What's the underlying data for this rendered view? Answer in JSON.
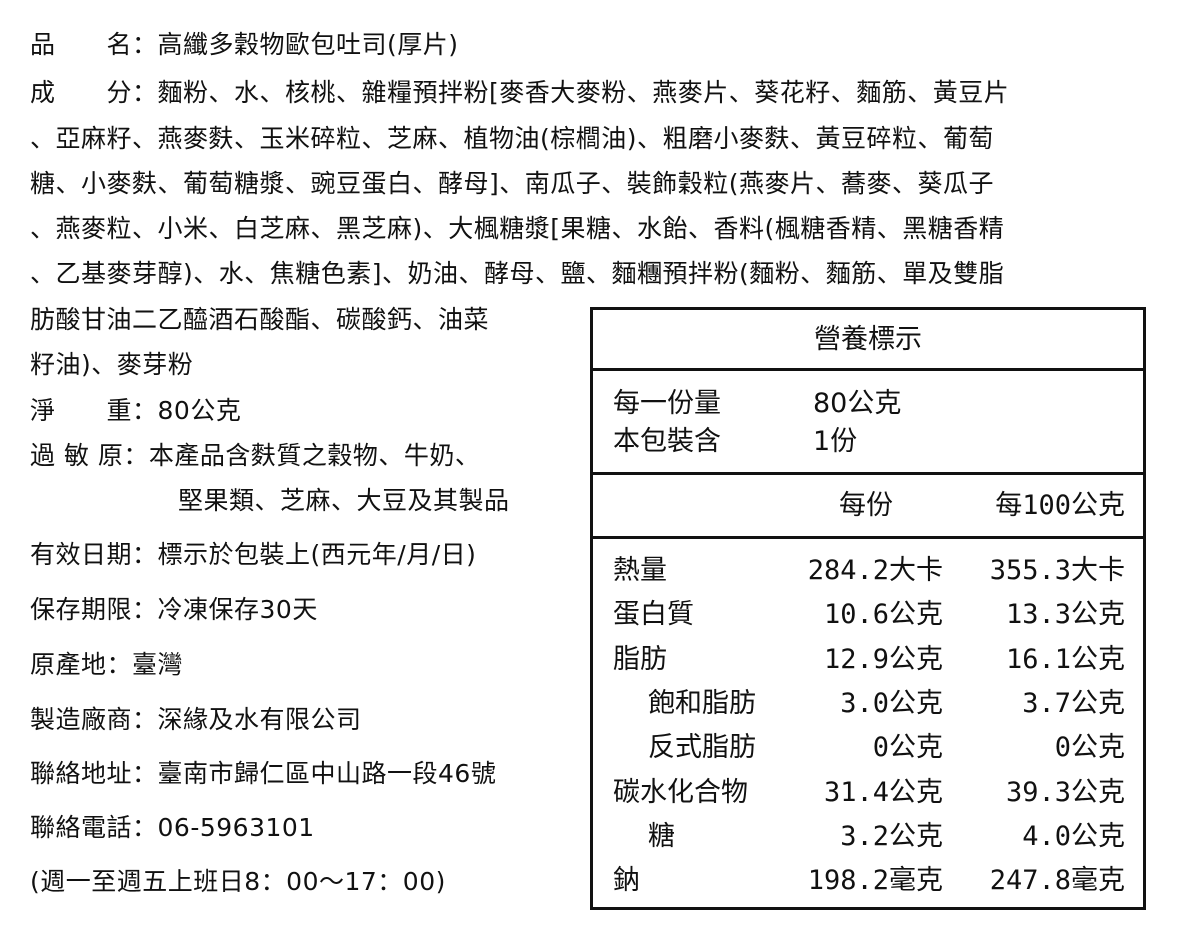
{
  "product_name": {
    "label": "品　　名：",
    "value": "高纖多穀物歐包吐司(厚片)"
  },
  "ingredients": {
    "label": "成　　分：",
    "lines": [
      "麵粉、水、核桃、雜糧預拌粉[麥香大麥粉、燕麥片、葵花籽、麵筋、黃豆片",
      "、亞麻籽、燕麥麩、玉米碎粒、芝麻、植物油(棕櫚油)、粗磨小麥麩、黃豆碎粒、葡萄",
      "糖、小麥麩、葡萄糖漿、豌豆蛋白、酵母]、南瓜子、裝飾穀粒(燕麥片、蕎麥、葵瓜子",
      "、燕麥粒、小米、白芝麻、黑芝麻)、大楓糖漿[果糖、水飴、香料(楓糖香精、黑糖香精",
      "、乙基麥芽醇)、水、焦糖色素]、奶油、酵母、鹽、麵糰預拌粉(麵粉、麵筋、單及雙脂",
      "肪酸甘油二乙醯酒石酸酯、碳酸鈣、油菜",
      "籽油)、麥芽粉"
    ]
  },
  "net_weight": {
    "label": "淨　　重：",
    "value": "80公克"
  },
  "allergens": {
    "label": "過 敏 原：",
    "lines": [
      "本產品含麩質之穀物、牛奶、",
      "堅果類、芝麻、大豆及其製品"
    ]
  },
  "expiry": {
    "label": "有效日期：",
    "value": "標示於包裝上(西元年/月/日)"
  },
  "storage": {
    "label": "保存期限：",
    "value": "冷凍保存30天"
  },
  "origin": {
    "label": "原產地：",
    "value": "臺灣"
  },
  "manufacturer": {
    "label": "製造廠商：",
    "value": "深緣及水有限公司"
  },
  "address": {
    "label": "聯絡地址：",
    "value": "臺南市歸仁區中山路一段46號"
  },
  "phone": {
    "label": "聯絡電話：",
    "value": "06-5963101"
  },
  "hours": "(週一至週五上班日8：00～17：00)",
  "nutrition": {
    "title": "營養標示",
    "serving_size_label": "每一份量",
    "serving_size": "80公克",
    "servings_label": "本包裝含",
    "servings": "1份",
    "col_per_serving": "每份",
    "col_per_100g": "每100公克",
    "rows": [
      {
        "name": "熱量",
        "per_serving": "284.2大卡",
        "per_100g": "355.3大卡"
      },
      {
        "name": "蛋白質",
        "per_serving": "10.6公克",
        "per_100g": "13.3公克"
      },
      {
        "name": "脂肪",
        "per_serving": "12.9公克",
        "per_100g": "16.1公克"
      },
      {
        "name": "飽和脂肪",
        "per_serving": "3.0公克",
        "per_100g": "3.7公克"
      },
      {
        "name": "反式脂肪",
        "per_serving": "0公克",
        "per_100g": "0公克"
      },
      {
        "name": "碳水化合物",
        "per_serving": "31.4公克",
        "per_100g": "39.3公克"
      },
      {
        "name": "糖",
        "per_serving": "3.2公克",
        "per_100g": "4.0公克"
      },
      {
        "name": "鈉",
        "per_serving": "198.2毫克",
        "per_100g": "247.8毫克"
      }
    ]
  }
}
